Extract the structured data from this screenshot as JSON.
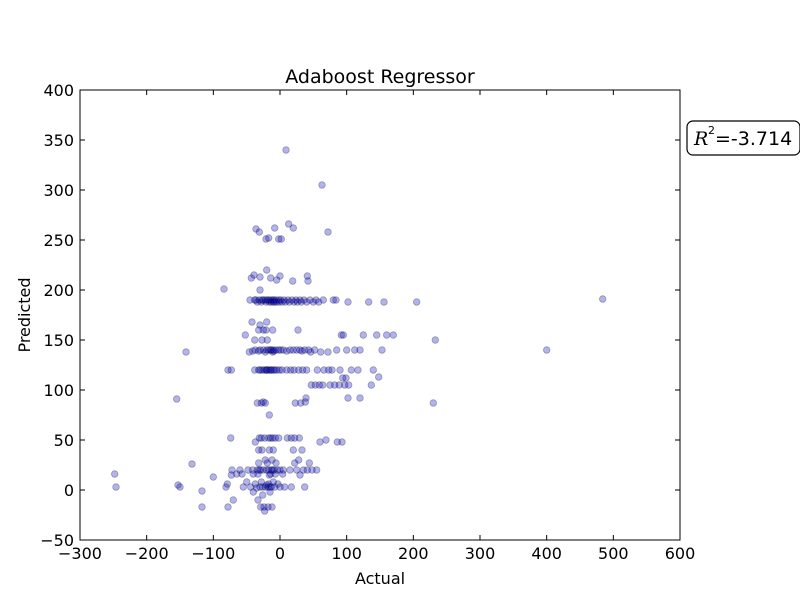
{
  "chart_data": {
    "type": "scatter",
    "title": "Adaboost Regressor",
    "xlabel": "Actual",
    "ylabel": "Predicted",
    "xlim": [
      -300,
      600
    ],
    "ylim": [
      -50,
      400
    ],
    "xticks": [
      "−300",
      "−200",
      "−100",
      "0",
      "100",
      "200",
      "300",
      "400",
      "500",
      "600"
    ],
    "yticks": [
      "−50",
      "0",
      "50",
      "100",
      "150",
      "200",
      "250",
      "300",
      "350",
      "400"
    ],
    "grid": false,
    "point_color": "#0000cc",
    "annotation": {
      "symbol": "R",
      "exponent": "2",
      "text": "=-3.714"
    },
    "points": [
      [
        -248,
        16
      ],
      [
        -246,
        3
      ],
      [
        -155,
        91
      ],
      [
        -153,
        5
      ],
      [
        -150,
        3
      ],
      [
        -141,
        138
      ],
      [
        -132,
        26
      ],
      [
        -117,
        -1
      ],
      [
        -117,
        -17
      ],
      [
        -100,
        13
      ],
      [
        -84,
        201
      ],
      [
        -81,
        3
      ],
      [
        -79,
        6
      ],
      [
        -78,
        120
      ],
      [
        -78,
        -17
      ],
      [
        -74,
        52
      ],
      [
        -73,
        120
      ],
      [
        -73,
        15
      ],
      [
        -72,
        20
      ],
      [
        -70,
        -10
      ],
      [
        -65,
        16
      ],
      [
        -60,
        20
      ],
      [
        -57,
        16
      ],
      [
        -55,
        3
      ],
      [
        -52,
        155
      ],
      [
        -50,
        8
      ],
      [
        -48,
        20
      ],
      [
        -46,
        138
      ],
      [
        -45,
        190
      ],
      [
        -44,
        3
      ],
      [
        -43,
        212
      ],
      [
        -42,
        168
      ],
      [
        -41,
        139
      ],
      [
        -41,
        20
      ],
      [
        -40,
        16
      ],
      [
        -40,
        -2
      ],
      [
        -39,
        215
      ],
      [
        -38,
        190
      ],
      [
        -38,
        150
      ],
      [
        -38,
        120
      ],
      [
        -37,
        140
      ],
      [
        -37,
        48
      ],
      [
        -37,
        6
      ],
      [
        -36,
        261
      ],
      [
        -36,
        190
      ],
      [
        -35,
        2
      ],
      [
        -34,
        188
      ],
      [
        -34,
        87
      ],
      [
        -34,
        20
      ],
      [
        -33,
        -10
      ],
      [
        -33,
        16
      ],
      [
        -32,
        160
      ],
      [
        -32,
        139
      ],
      [
        -32,
        120
      ],
      [
        -32,
        40
      ],
      [
        -32,
        27
      ],
      [
        -31,
        258
      ],
      [
        -31,
        190
      ],
      [
        -31,
        52
      ],
      [
        -31,
        20
      ],
      [
        -30,
        3
      ],
      [
        -30,
        213
      ],
      [
        -30,
        200
      ],
      [
        -30,
        165
      ],
      [
        -30,
        140
      ],
      [
        -30,
        120
      ],
      [
        -29,
        -17
      ],
      [
        -29,
        20
      ],
      [
        -28,
        188
      ],
      [
        -28,
        87
      ],
      [
        -28,
        52
      ],
      [
        -28,
        8
      ],
      [
        -27,
        190
      ],
      [
        -27,
        150
      ],
      [
        -27,
        120
      ],
      [
        -27,
        40
      ],
      [
        -26,
        -5
      ],
      [
        -26,
        3
      ],
      [
        -25,
        190
      ],
      [
        -25,
        160
      ],
      [
        -25,
        140
      ],
      [
        -25,
        88
      ],
      [
        -25,
        20
      ],
      [
        -24,
        120
      ],
      [
        -24,
        -17
      ],
      [
        -23,
        52
      ],
      [
        -23,
        -21
      ],
      [
        -22,
        190
      ],
      [
        -22,
        138
      ],
      [
        -22,
        87
      ],
      [
        -22,
        30
      ],
      [
        -22,
        3
      ],
      [
        -21,
        251
      ],
      [
        -21,
        188
      ],
      [
        -21,
        160
      ],
      [
        -21,
        120
      ],
      [
        -20,
        220
      ],
      [
        -20,
        168
      ],
      [
        -20,
        140
      ],
      [
        -20,
        120
      ],
      [
        -20,
        20
      ],
      [
        -20,
        5
      ],
      [
        -19,
        190
      ],
      [
        -19,
        150
      ],
      [
        -19,
        120
      ],
      [
        -19,
        27
      ],
      [
        -18,
        3
      ],
      [
        -18,
        -17
      ],
      [
        -17,
        252
      ],
      [
        -17,
        190
      ],
      [
        -17,
        140
      ],
      [
        -17,
        52
      ],
      [
        -17,
        20
      ],
      [
        -17,
        6
      ],
      [
        -16,
        188
      ],
      [
        -16,
        120
      ],
      [
        -16,
        75
      ],
      [
        -16,
        40
      ],
      [
        -16,
        15
      ],
      [
        -15,
        3
      ],
      [
        -15,
        -2
      ],
      [
        -14,
        212
      ],
      [
        -14,
        190
      ],
      [
        -14,
        140
      ],
      [
        -14,
        120
      ],
      [
        -14,
        52
      ],
      [
        -14,
        16
      ],
      [
        -13,
        188
      ],
      [
        -13,
        140
      ],
      [
        -13,
        120
      ],
      [
        -13,
        20
      ],
      [
        -13,
        3
      ],
      [
        -12,
        -17
      ],
      [
        -12,
        30
      ],
      [
        -11,
        190
      ],
      [
        -11,
        160
      ],
      [
        -11,
        138
      ],
      [
        -11,
        52
      ],
      [
        -11,
        20
      ],
      [
        -10,
        188
      ],
      [
        -10,
        140
      ],
      [
        -10,
        120
      ],
      [
        -10,
        40
      ],
      [
        -10,
        8
      ],
      [
        -9,
        190
      ],
      [
        -9,
        139
      ],
      [
        -9,
        20
      ],
      [
        -8,
        3
      ],
      [
        -8,
        262
      ],
      [
        -8,
        188
      ],
      [
        -8,
        120
      ],
      [
        -7,
        52
      ],
      [
        -7,
        16
      ],
      [
        -6,
        190
      ],
      [
        -6,
        140
      ],
      [
        -6,
        27
      ],
      [
        -5,
        210
      ],
      [
        -5,
        188
      ],
      [
        -5,
        120
      ],
      [
        -4,
        20
      ],
      [
        -3,
        6
      ],
      [
        -2,
        251
      ],
      [
        -2,
        190
      ],
      [
        -2,
        140
      ],
      [
        -2,
        52
      ],
      [
        -1,
        188
      ],
      [
        -1,
        120
      ],
      [
        0,
        214
      ],
      [
        0,
        20
      ],
      [
        0,
        3
      ],
      [
        1,
        190
      ],
      [
        1,
        140
      ],
      [
        2,
        251
      ],
      [
        3,
        188
      ],
      [
        3,
        120
      ],
      [
        4,
        16
      ],
      [
        5,
        140
      ],
      [
        5,
        20
      ],
      [
        6,
        190
      ],
      [
        7,
        3
      ],
      [
        8,
        188
      ],
      [
        9,
        340
      ],
      [
        10,
        139
      ],
      [
        10,
        120
      ],
      [
        11,
        52
      ],
      [
        12,
        190
      ],
      [
        13,
        266
      ],
      [
        14,
        188
      ],
      [
        15,
        140
      ],
      [
        15,
        20
      ],
      [
        16,
        120
      ],
      [
        17,
        52
      ],
      [
        17,
        3
      ],
      [
        18,
        190
      ],
      [
        19,
        209
      ],
      [
        20,
        262
      ],
      [
        20,
        140
      ],
      [
        20,
        40
      ],
      [
        21,
        188
      ],
      [
        21,
        120
      ],
      [
        22,
        52
      ],
      [
        22,
        27
      ],
      [
        23,
        87
      ],
      [
        24,
        190
      ],
      [
        25,
        140
      ],
      [
        25,
        20
      ],
      [
        26,
        188
      ],
      [
        27,
        160
      ],
      [
        28,
        120
      ],
      [
        28,
        30
      ],
      [
        29,
        52
      ],
      [
        30,
        190
      ],
      [
        30,
        140
      ],
      [
        30,
        15
      ],
      [
        31,
        87
      ],
      [
        32,
        188
      ],
      [
        33,
        139
      ],
      [
        33,
        40
      ],
      [
        34,
        120
      ],
      [
        35,
        20
      ],
      [
        36,
        190
      ],
      [
        37,
        140
      ],
      [
        37,
        3
      ],
      [
        38,
        88
      ],
      [
        39,
        92
      ],
      [
        40,
        120
      ],
      [
        40,
        188
      ],
      [
        41,
        214
      ],
      [
        41,
        20
      ],
      [
        42,
        209
      ],
      [
        43,
        140
      ],
      [
        44,
        27
      ],
      [
        45,
        190
      ],
      [
        46,
        138
      ],
      [
        47,
        105
      ],
      [
        48,
        20
      ],
      [
        50,
        188
      ],
      [
        52,
        140
      ],
      [
        53,
        105
      ],
      [
        54,
        190
      ],
      [
        55,
        20
      ],
      [
        56,
        120
      ],
      [
        58,
        188
      ],
      [
        59,
        105
      ],
      [
        60,
        48
      ],
      [
        61,
        138
      ],
      [
        63,
        305
      ],
      [
        64,
        105
      ],
      [
        65,
        190
      ],
      [
        66,
        120
      ],
      [
        69,
        50
      ],
      [
        72,
        258
      ],
      [
        72,
        138
      ],
      [
        73,
        120
      ],
      [
        75,
        105
      ],
      [
        78,
        120
      ],
      [
        80,
        190
      ],
      [
        82,
        105
      ],
      [
        84,
        190
      ],
      [
        85,
        140
      ],
      [
        86,
        48
      ],
      [
        89,
        105
      ],
      [
        90,
        120
      ],
      [
        92,
        155
      ],
      [
        93,
        48
      ],
      [
        94,
        112
      ],
      [
        95,
        155
      ],
      [
        97,
        105
      ],
      [
        99,
        112
      ],
      [
        100,
        140
      ],
      [
        102,
        92
      ],
      [
        102,
        188
      ],
      [
        103,
        105
      ],
      [
        107,
        120
      ],
      [
        112,
        140
      ],
      [
        117,
        120
      ],
      [
        120,
        92
      ],
      [
        120,
        140
      ],
      [
        125,
        155
      ],
      [
        133,
        188
      ],
      [
        137,
        105
      ],
      [
        140,
        120
      ],
      [
        145,
        155
      ],
      [
        148,
        113
      ],
      [
        153,
        140
      ],
      [
        156,
        188
      ],
      [
        160,
        155
      ],
      [
        170,
        155
      ],
      [
        205,
        188
      ],
      [
        230,
        87
      ],
      [
        233,
        150
      ],
      [
        400,
        140
      ],
      [
        484,
        191
      ]
    ]
  }
}
